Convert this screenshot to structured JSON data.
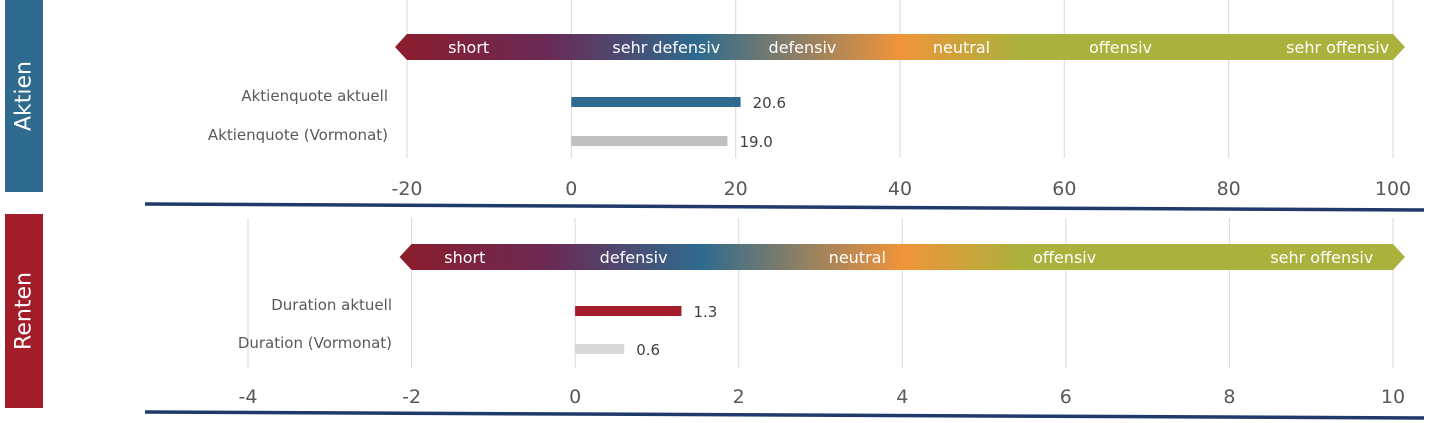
{
  "colors": {
    "aktien_tab": "#2e6b8e",
    "renten_tab": "#a31c2a",
    "aktuell_aktien": "#2e6b8e",
    "aktuell_renten": "#a31c2a",
    "vormonat_aktien": "#c0c0c0",
    "vormonat_renten": "#d9d9d9",
    "axis_line": "#1f3a6b",
    "gridline": "#d9d9d9",
    "arrow_gradient": [
      "#8c1d2c",
      "#6a2a55",
      "#2e6b8e",
      "#f0943a",
      "#aab13c"
    ]
  },
  "chart_data": [
    {
      "type": "bar",
      "orientation": "horizontal",
      "panel_label": "Aktien",
      "categories": [
        "Aktienquote aktuell",
        "Aktienquote (Vormonat)"
      ],
      "values": [
        20.6,
        19.0
      ],
      "value_labels": [
        "20.6",
        "19.0"
      ],
      "xlim": [
        -20,
        100
      ],
      "xticks": [
        -20,
        0,
        20,
        40,
        60,
        80,
        100
      ],
      "xtick_labels": [
        "-20",
        "0",
        "20",
        "40",
        "60",
        "80",
        "100"
      ],
      "grid": true,
      "scale_arrow": {
        "from": -20,
        "to": 100,
        "zones": [
          {
            "label": "short",
            "at": -15
          },
          {
            "label": "sehr defensiv",
            "at": 5
          },
          {
            "label": "defensiv",
            "at": 24
          },
          {
            "label": "neutral",
            "at": 44
          },
          {
            "label": "offensiv",
            "at": 63
          },
          {
            "label": "sehr offensiv",
            "at": 87
          }
        ]
      }
    },
    {
      "type": "bar",
      "orientation": "horizontal",
      "panel_label": "Renten",
      "categories": [
        "Duration aktuell",
        "Duration (Vormonat)"
      ],
      "values": [
        1.3,
        0.6
      ],
      "value_labels": [
        "1.3",
        "0.6"
      ],
      "xlim": [
        -4,
        10
      ],
      "xticks": [
        -4,
        -2,
        0,
        2,
        4,
        6,
        8,
        10
      ],
      "xtick_labels": [
        "-4",
        "-2",
        "0",
        "2",
        "4",
        "6",
        "8",
        "10"
      ],
      "grid": true,
      "scale_arrow": {
        "from": -2,
        "to": 10,
        "zones": [
          {
            "label": "short",
            "at": -1.6
          },
          {
            "label": "defensiv",
            "at": 0.3
          },
          {
            "label": "neutral",
            "at": 3.1
          },
          {
            "label": "offensiv",
            "at": 5.6
          },
          {
            "label": "sehr offensiv",
            "at": 8.5
          }
        ]
      }
    }
  ]
}
